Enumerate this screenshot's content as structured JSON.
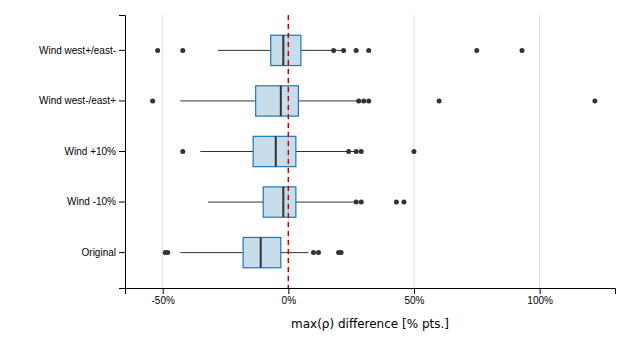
{
  "chart_data": {
    "type": "box",
    "orientation": "horizontal",
    "categories": [
      "Wind west+/east-",
      "Wind west-/east+",
      "Wind +10%",
      "Wind -10%",
      "Original"
    ],
    "boxes": [
      {
        "q1": -7,
        "median": -2,
        "q3": 5,
        "whisker_low": -28,
        "whisker_high": 22,
        "fliers": [
          -52,
          -42,
          18,
          22,
          27,
          32,
          75,
          93
        ]
      },
      {
        "q1": -13,
        "median": -3,
        "q3": 4,
        "whisker_low": -43,
        "whisker_high": 28,
        "fliers": [
          -54,
          28,
          30,
          32,
          60,
          122
        ]
      },
      {
        "q1": -14,
        "median": -5,
        "q3": 3,
        "whisker_low": -35,
        "whisker_high": 28,
        "fliers": [
          -42,
          24,
          27,
          29,
          50
        ]
      },
      {
        "q1": -10,
        "median": -2,
        "q3": 3,
        "whisker_low": -32,
        "whisker_high": 27,
        "fliers": [
          27,
          29,
          43,
          46
        ]
      },
      {
        "q1": -18,
        "median": -11,
        "q3": -3,
        "whisker_low": -43,
        "whisker_high": 8,
        "fliers": [
          -49,
          -48,
          10,
          12,
          20,
          21
        ]
      }
    ],
    "xlabel": "max(ρ) difference [% pts.]",
    "xlim": [
      -65,
      130
    ],
    "xticks": [
      {
        "value": -50,
        "label": "-50%"
      },
      {
        "value": 0,
        "label": "0%"
      },
      {
        "value": 50,
        "label": "50%"
      },
      {
        "value": 100,
        "label": "100%"
      }
    ],
    "reference_line": {
      "x": 0,
      "color": "#cc0000"
    },
    "grid": true
  }
}
